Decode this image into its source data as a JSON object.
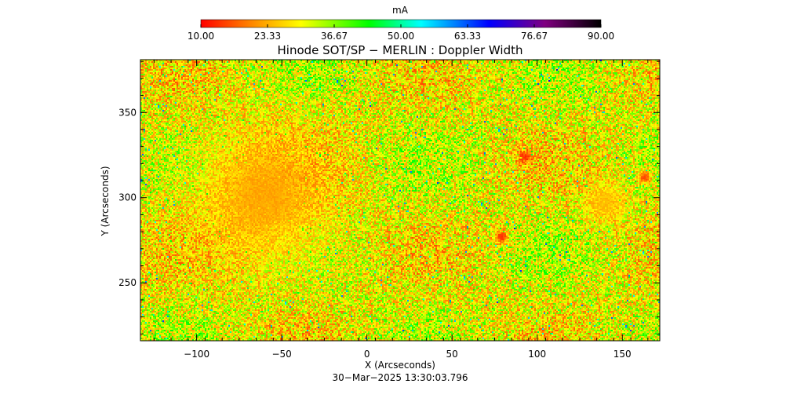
{
  "chart_data": {
    "type": "heatmap",
    "title": "Hinode SOT/SP − MERLIN : Doppler Width",
    "xlabel": "X (Arcseconds)",
    "ylabel": "Y (Arcseconds)",
    "timestamp": "30−Mar−2025 13:30:03.796",
    "xlim": [
      -133,
      172
    ],
    "ylim": [
      216,
      381
    ],
    "x_ticks": [
      -100,
      -50,
      0,
      50,
      100,
      150
    ],
    "x_tick_labels": [
      "−100",
      "−50",
      "0",
      "50",
      "100",
      "150"
    ],
    "y_ticks": [
      250,
      300,
      350
    ],
    "y_tick_labels": [
      "250",
      "300",
      "350"
    ],
    "colorbar": {
      "unit": "mA",
      "range": [
        10.0,
        90.0
      ],
      "tick_labels": [
        "10.00",
        "23.33",
        "36.67",
        "50.00",
        "63.33",
        "76.67",
        "90.00"
      ],
      "colormap": "rainbow (red-yellow-green-cyan-blue-violet-black)"
    },
    "value_distribution": {
      "dominant_range_mA": [
        15,
        45
      ],
      "typical_value_mA": 30,
      "notable_features": [
        {
          "description": "compact low-width patch (red)",
          "x": 93,
          "y": 324,
          "value_mA": 12
        },
        {
          "description": "compact low-width patch (red)",
          "x": 79,
          "y": 277,
          "value_mA": 12
        },
        {
          "description": "compact low-width patch (red)",
          "x": 163,
          "y": 312,
          "value_mA": 13
        },
        {
          "description": "orange diffuse region",
          "x": 140,
          "y": 297,
          "value_mA": 24
        },
        {
          "description": "mostly red/orange granular region",
          "x": -60,
          "y": 300,
          "value_mA": 22
        }
      ]
    }
  },
  "colors": {
    "stops": [
      "#ff0000",
      "#ff8000",
      "#ffff00",
      "#00ff00",
      "#00ffff",
      "#0000ff",
      "#800080",
      "#000000"
    ],
    "axis": "#000000",
    "background": "#ffffff"
  }
}
